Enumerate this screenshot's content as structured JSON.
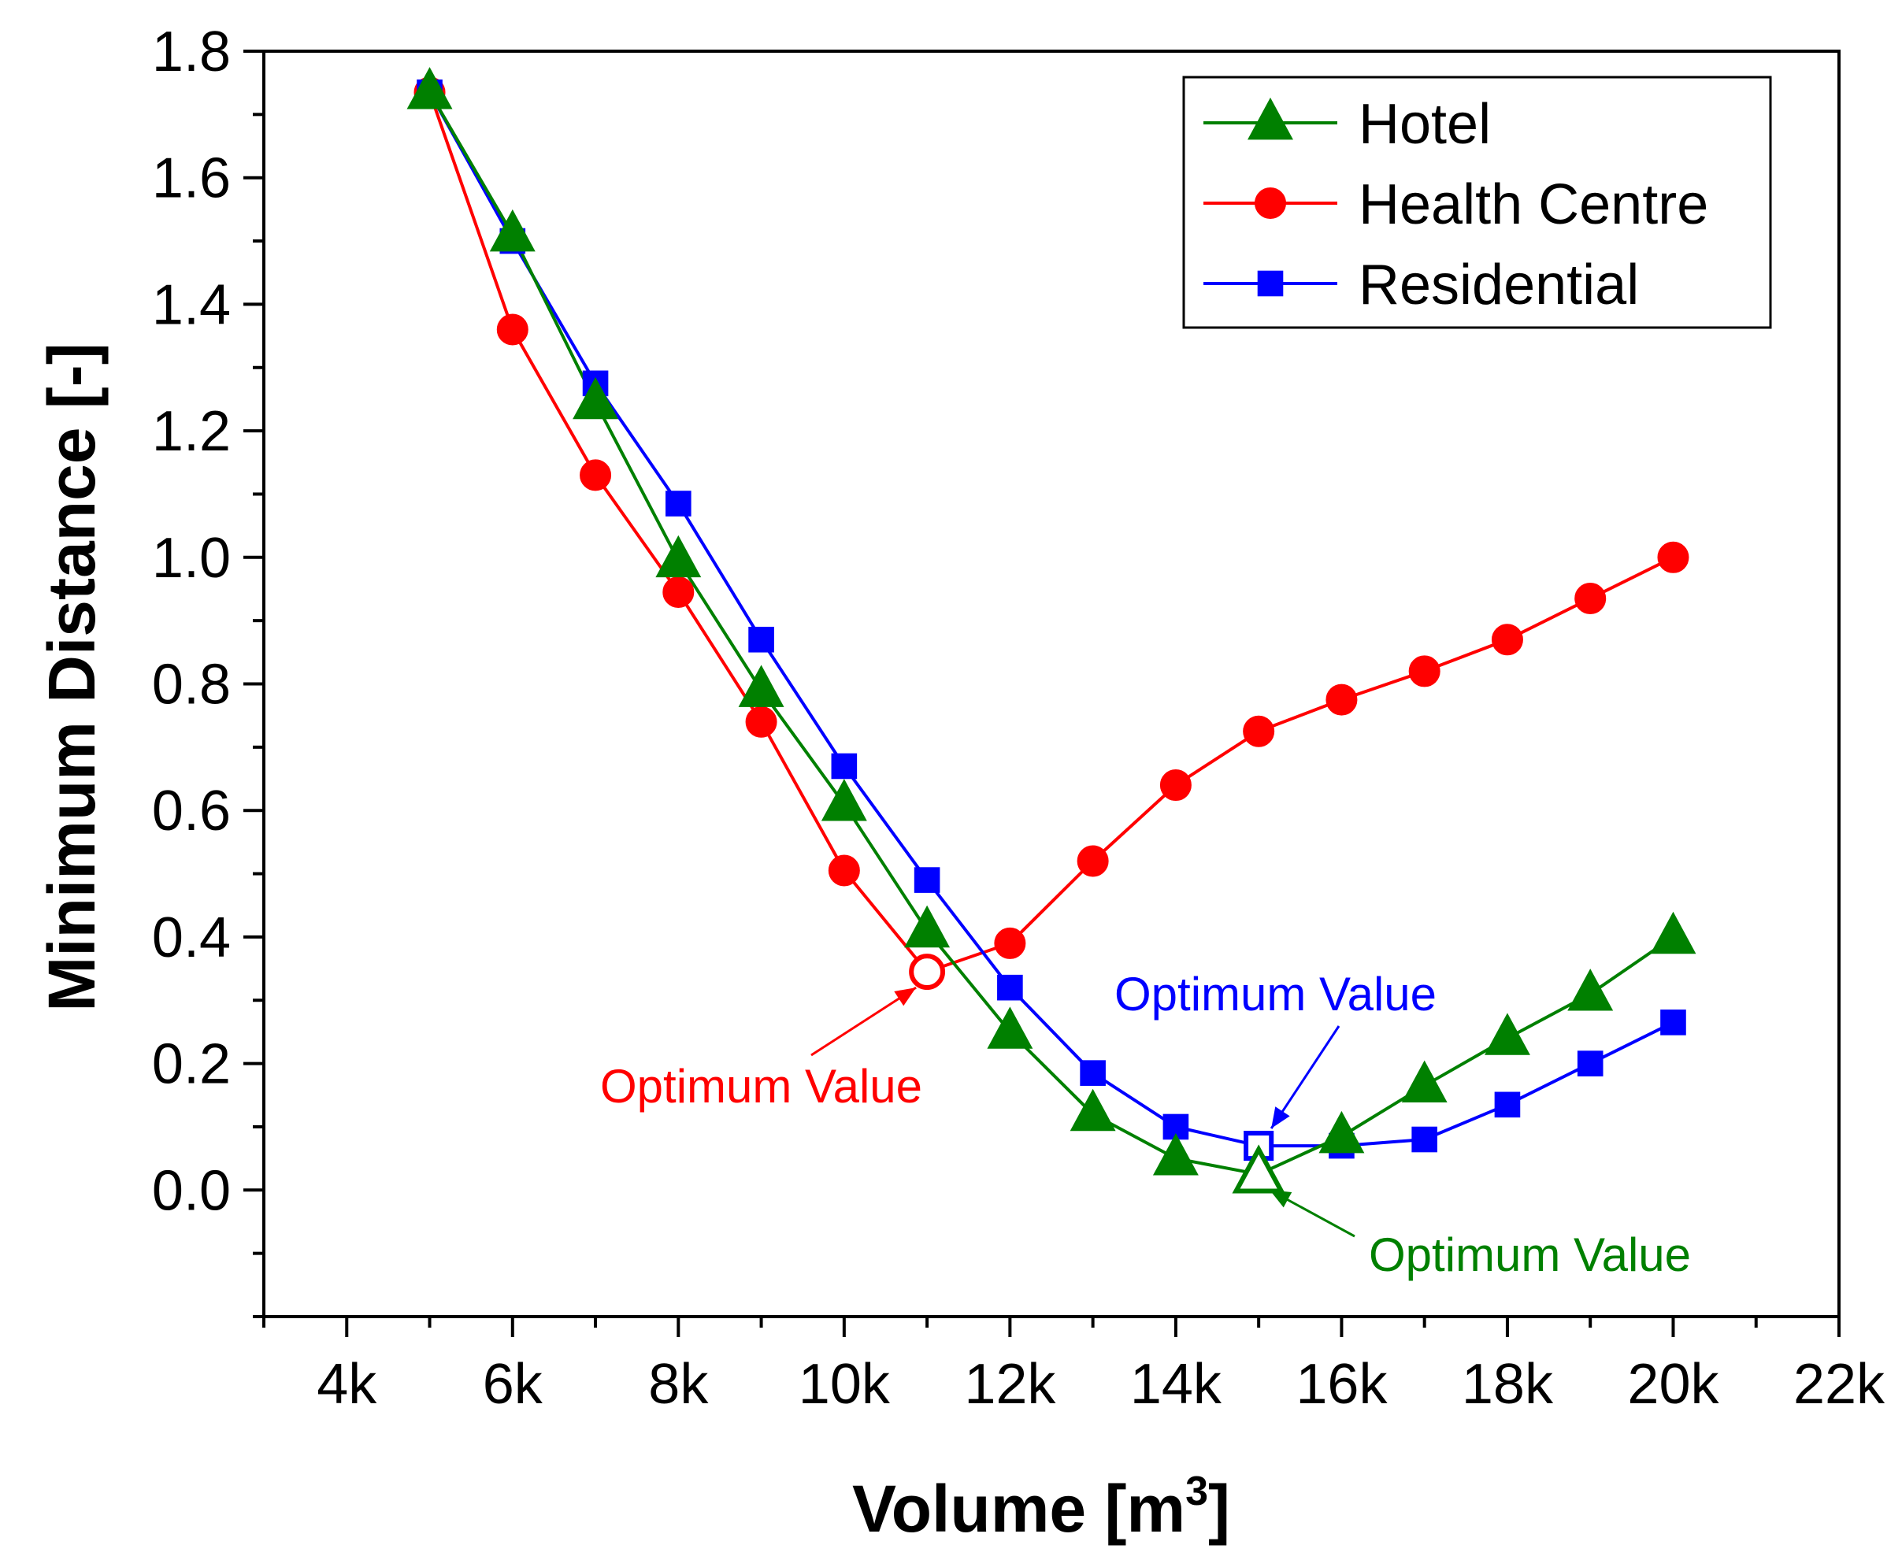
{
  "chart_data": {
    "type": "line",
    "title": "",
    "xlabel": "Volume [m",
    "xlabel_sup": "3",
    "xlabel_end": "]",
    "ylabel": "Minimum Distance [-]",
    "xlim": [
      3000,
      22000
    ],
    "ylim": [
      -0.2,
      1.8
    ],
    "x_ticks": [
      4000,
      6000,
      8000,
      10000,
      12000,
      14000,
      16000,
      18000,
      20000,
      22000
    ],
    "x_tick_labels": [
      "4k",
      "6k",
      "8k",
      "10k",
      "12k",
      "14k",
      "16k",
      "18k",
      "20k",
      "22k"
    ],
    "y_ticks": [
      0.0,
      0.2,
      0.4,
      0.6,
      0.8,
      1.0,
      1.2,
      1.4,
      1.6,
      1.8
    ],
    "y_tick_labels": [
      "0.0",
      "0.2",
      "0.4",
      "0.6",
      "0.8",
      "1.0",
      "1.2",
      "1.4",
      "1.6",
      "1.8"
    ],
    "legend_position": "top-right",
    "x": [
      5000,
      6000,
      7000,
      8000,
      9000,
      10000,
      11000,
      12000,
      13000,
      14000,
      15000,
      16000,
      17000,
      18000,
      19000,
      20000
    ],
    "series": [
      {
        "name": "Hotel",
        "color": "#008000",
        "marker": "triangle",
        "values": [
          1.735,
          1.51,
          1.245,
          0.995,
          0.79,
          0.61,
          0.41,
          0.25,
          0.12,
          0.05,
          0.025,
          0.085,
          0.165,
          0.24,
          0.31,
          0.4
        ],
        "optimum_x": 15000,
        "optimum_y": 0.025
      },
      {
        "name": "Health Centre",
        "color": "#ff0000",
        "marker": "circle",
        "values": [
          1.735,
          1.36,
          1.13,
          0.945,
          0.74,
          0.505,
          0.345,
          0.39,
          0.52,
          0.64,
          0.725,
          0.775,
          0.82,
          0.87,
          0.935,
          1.0
        ],
        "optimum_x": 11000,
        "optimum_y": 0.345
      },
      {
        "name": "Residential",
        "color": "#0000ff",
        "marker": "square",
        "values": [
          1.735,
          1.5,
          1.275,
          1.085,
          0.87,
          0.67,
          0.49,
          0.32,
          0.185,
          0.1,
          0.07,
          0.07,
          0.08,
          0.135,
          0.2,
          0.265
        ],
        "optimum_x": 15000,
        "optimum_y": 0.07
      }
    ],
    "annotations": [
      {
        "text": "Optimum Value",
        "series": "Health Centre",
        "color": "#ff0000"
      },
      {
        "text": "Optimum Value",
        "series": "Residential",
        "color": "#0000ff"
      },
      {
        "text": "Optimum Value",
        "series": "Hotel",
        "color": "#008000"
      }
    ]
  }
}
